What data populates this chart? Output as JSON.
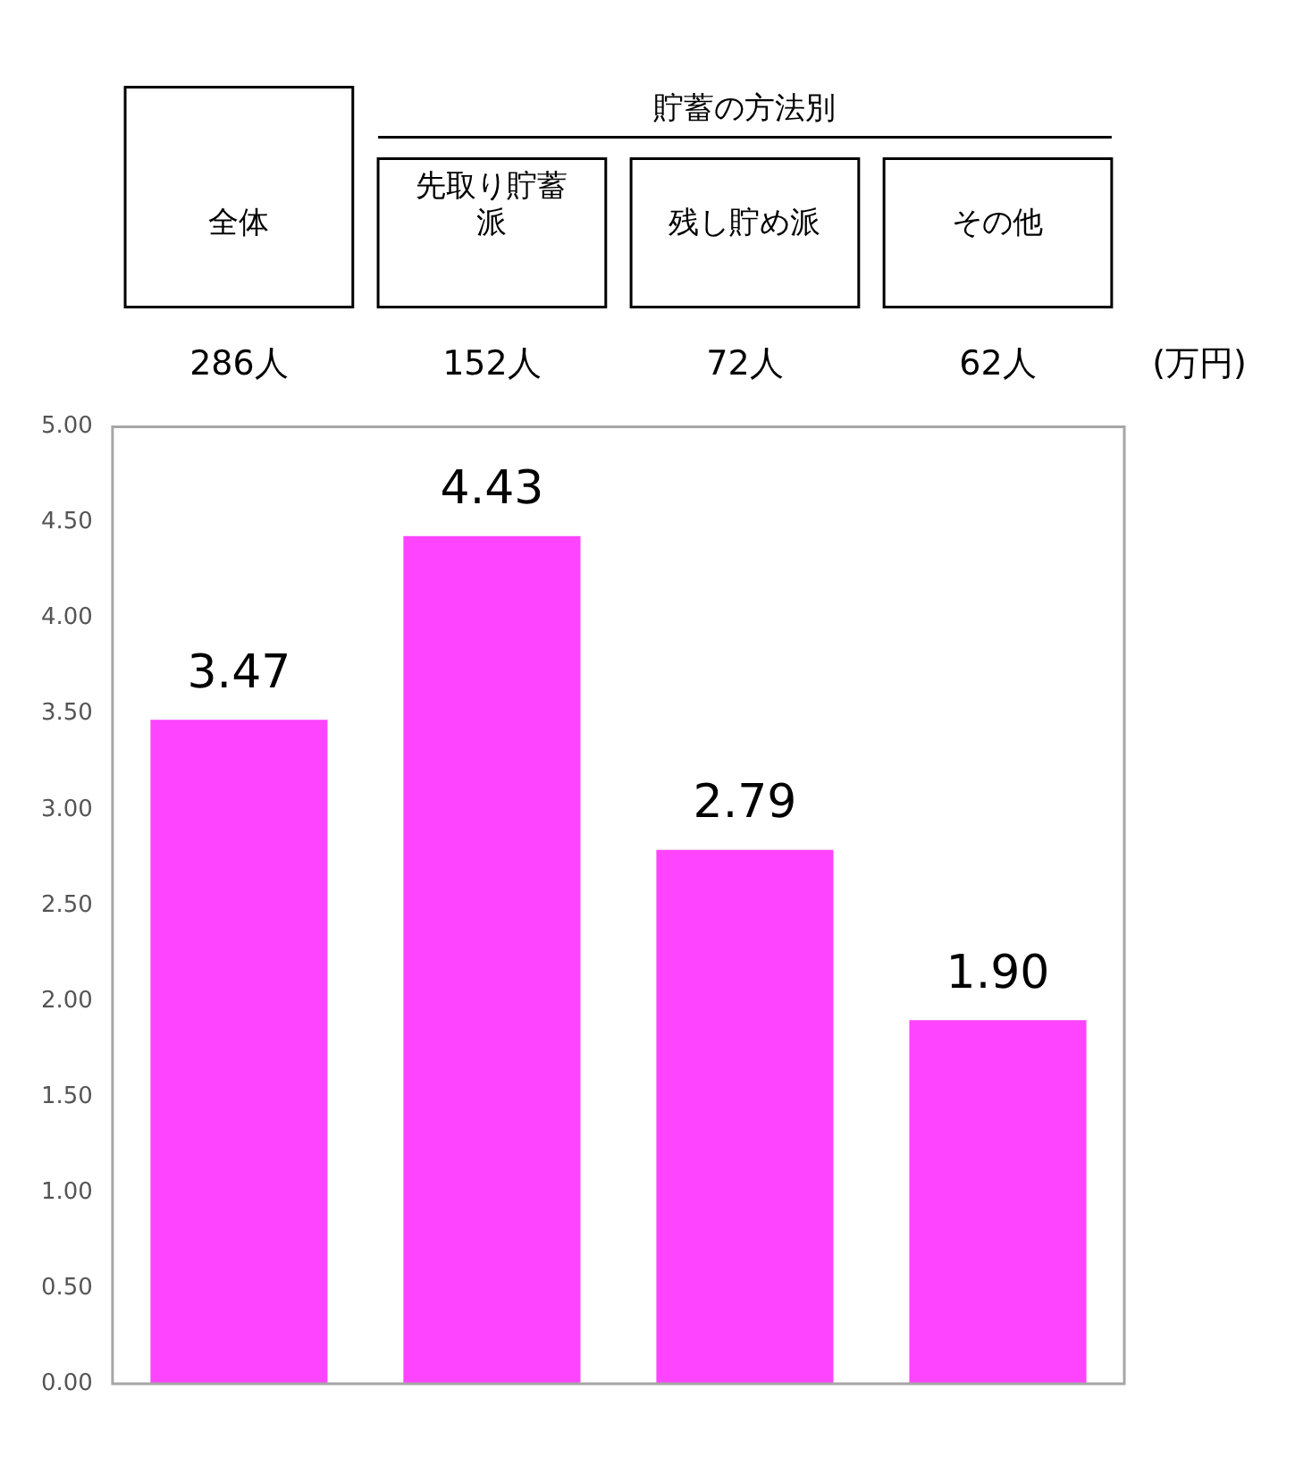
{
  "chart_data": {
    "type": "bar",
    "ylabel": "(万円)",
    "categories": [
      "全体",
      "先取り貯蓄派",
      "残し貯め派",
      "その他"
    ],
    "values": [
      3.47,
      4.43,
      2.79,
      1.9
    ],
    "color": "#ff44ff",
    "ylim": [
      0,
      5
    ],
    "yticks": [
      {
        "value": 0,
        "label": "0.00"
      },
      {
        "value": 0.5,
        "label": "0.50"
      },
      {
        "value": 1,
        "label": "1.00"
      },
      {
        "value": 1.5,
        "label": "1.50"
      },
      {
        "value": 2,
        "label": "2.00"
      },
      {
        "value": 2.5,
        "label": "2.50"
      },
      {
        "value": 3,
        "label": "3.00"
      },
      {
        "value": 3.5,
        "label": "3.50"
      },
      {
        "value": 4,
        "label": "4.00"
      },
      {
        "value": 4.5,
        "label": "4.50"
      },
      {
        "value": 5,
        "label": "5.00"
      }
    ],
    "value_labels": [
      "3.47",
      "4.43",
      "2.79",
      "1.90"
    ],
    "grid": false,
    "annotations": [
      "貯蓄の方法別",
      "286人",
      "152人",
      "72人",
      "62人"
    ]
  }
}
